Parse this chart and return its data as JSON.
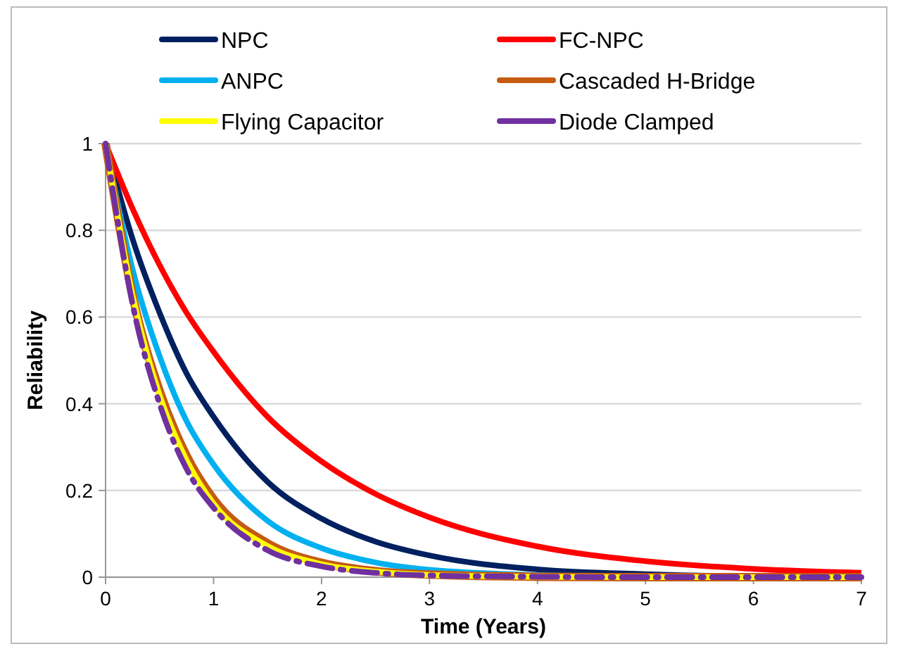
{
  "chart_data": {
    "type": "line",
    "xlabel": "Time (Years)",
    "ylabel": "Reliability",
    "x": [
      0,
      0.25,
      0.5,
      0.75,
      1,
      1.5,
      2,
      2.5,
      3,
      4,
      5,
      6,
      7
    ],
    "series": [
      {
        "name": "NPC",
        "color": "#002060",
        "values": [
          1,
          0.78,
          0.61,
          0.47,
          0.37,
          0.22,
          0.135,
          0.082,
          0.05,
          0.018,
          0.007,
          0.002,
          0.001
        ]
      },
      {
        "name": "FC-NPC",
        "color": "#ff0000",
        "values": [
          1,
          0.85,
          0.72,
          0.61,
          0.52,
          0.37,
          0.267,
          0.192,
          0.138,
          0.071,
          0.037,
          0.019,
          0.01
        ]
      },
      {
        "name": "ANPC",
        "color": "#00b0f0",
        "values": [
          1,
          0.71,
          0.51,
          0.36,
          0.26,
          0.13,
          0.067,
          0.034,
          0.017,
          0.005,
          0.001,
          null,
          null
        ]
      },
      {
        "name": "Cascaded H-Bridge",
        "color": "#c55a11",
        "values": [
          1,
          0.65,
          0.43,
          0.28,
          0.18,
          0.078,
          0.033,
          0.014,
          0.006,
          0.001,
          0,
          0,
          0
        ]
      },
      {
        "name": "Flying Capacitor",
        "color": "#ffff00",
        "values": [
          1,
          0.65,
          0.42,
          0.27,
          0.17,
          0.072,
          0.03,
          0.013,
          0.005,
          0.001,
          0,
          0,
          0
        ]
      },
      {
        "name": "Diode Clamped",
        "color": "#7030a0",
        "line_style": "dashed",
        "values": [
          1,
          0.63,
          0.4,
          0.25,
          0.16,
          0.062,
          0.025,
          0.01,
          0.004,
          0.001,
          0,
          0,
          0
        ]
      }
    ],
    "xlim": [
      0,
      7
    ],
    "xticks": [
      0,
      1,
      2,
      3,
      4,
      5,
      6,
      7
    ],
    "ylim": [
      0,
      1
    ],
    "yticks": [
      0,
      0.2,
      0.4,
      0.6,
      0.8,
      1
    ],
    "grid": "y",
    "legend": "top",
    "line_style": "solid",
    "marker": "none"
  }
}
